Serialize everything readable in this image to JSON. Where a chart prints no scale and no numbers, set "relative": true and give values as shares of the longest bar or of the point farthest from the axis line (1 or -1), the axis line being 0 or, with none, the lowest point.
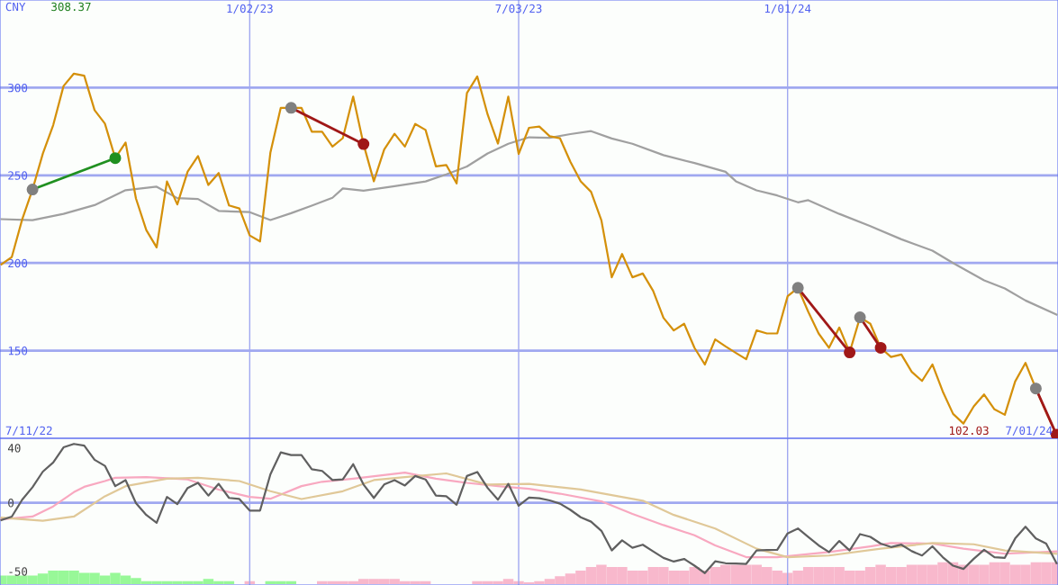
{
  "chart_data": [
    {
      "type": "line",
      "x": [
        "2022-07-18",
        "2022-07-25",
        "2022-08-01",
        "2022-08-08",
        "2022-08-15",
        "2022-08-22",
        "2022-08-29",
        "2022-09-05",
        "2022-09-12",
        "2022-09-19",
        "2022-09-26",
        "2022-10-03",
        "2022-10-10",
        "2022-10-17",
        "2022-10-24",
        "2022-10-31",
        "2022-11-07",
        "2022-11-14",
        "2022-11-21",
        "2022-11-28",
        "2022-12-05",
        "2022-12-12",
        "2022-12-19",
        "2022-12-26",
        "2023-01-02",
        "2023-01-09",
        "2023-01-16",
        "2023-01-23",
        "2023-01-30",
        "2023-02-06",
        "2023-02-13",
        "2023-02-20",
        "2023-02-27",
        "2023-03-06",
        "2023-03-13",
        "2023-03-20",
        "2023-03-27",
        "2023-04-03",
        "2023-04-10",
        "2023-04-17",
        "2023-04-24",
        "2023-05-01",
        "2023-05-08",
        "2023-05-15",
        "2023-05-22",
        "2023-05-29",
        "2023-06-05",
        "2023-06-12",
        "2023-06-19",
        "2023-06-26",
        "2023-07-03",
        "2023-07-10",
        "2023-07-17",
        "2023-07-24",
        "2023-07-31",
        "2023-08-07",
        "2023-08-14",
        "2023-08-21",
        "2023-08-28",
        "2023-09-04",
        "2023-09-11",
        "2023-09-18",
        "2023-09-25",
        "2023-10-02",
        "2023-10-09",
        "2023-10-16",
        "2023-10-23",
        "2023-10-30",
        "2023-11-06",
        "2023-11-13",
        "2023-11-20",
        "2023-11-27",
        "2023-12-04",
        "2023-12-11",
        "2023-12-18",
        "2023-12-25",
        "2024-01-01",
        "2024-01-08",
        "2024-01-15",
        "2024-01-22",
        "2024-01-29",
        "2024-02-05",
        "2024-02-12",
        "2024-02-19",
        "2024-02-26",
        "2024-03-04",
        "2024-03-11",
        "2024-03-18",
        "2024-03-25",
        "2024-04-01",
        "2024-04-08",
        "2024-04-15",
        "2024-04-22",
        "2024-04-29",
        "2024-05-06",
        "2024-05-13",
        "2024-05-20",
        "2024-05-27",
        "2024-06-03",
        "2024-06-10",
        "2024-06-17",
        "2024-06-24",
        "2024-07-01"
      ],
      "series": [
        {
          "color": "#a0a0a0",
          "x": [
            "2022-07-18",
            "2022-08-08",
            "2022-08-29",
            "2022-09-19",
            "2022-10-10",
            "2022-10-31",
            "2022-11-14",
            "2022-11-28",
            "2022-12-12",
            "2023-01-02",
            "2023-01-16",
            "2023-01-30",
            "2023-02-13",
            "2023-02-27",
            "2023-03-06",
            "2023-03-20",
            "2023-04-10",
            "2023-05-01",
            "2023-05-15",
            "2023-05-29",
            "2023-06-12",
            "2023-06-26",
            "2023-07-10",
            "2023-07-24",
            "2023-08-07",
            "2023-08-21",
            "2023-09-04",
            "2023-09-18",
            "2023-10-09",
            "2023-10-30",
            "2023-11-20",
            "2023-11-27",
            "2023-12-11",
            "2023-12-25",
            "2024-01-08",
            "2024-01-15",
            "2024-02-05",
            "2024-02-26",
            "2024-03-18",
            "2024-04-08",
            "2024-04-22",
            "2024-05-13",
            "2024-05-27",
            "2024-06-10",
            "2024-07-01"
          ],
          "values": [
            225.0,
            224.4,
            228,
            233,
            241.5,
            243.5,
            237,
            236.5,
            229.7,
            229,
            224.5,
            228.4,
            232.7,
            237.2,
            242.5,
            241.2,
            243.8,
            246.5,
            250.5,
            255,
            262.5,
            268,
            271.7,
            271.4,
            273.5,
            275.2,
            271,
            268,
            261.5,
            257,
            252,
            246.6,
            241.4,
            238.5,
            234.6,
            235.8,
            228,
            221,
            213.5,
            207,
            200,
            190.1,
            185.5,
            178.6,
            170.5
          ]
        },
        {
          "color": "#d4900a",
          "values": [
            199.2,
            203.4,
            224.8,
            241.9,
            262.4,
            278.6,
            300.9,
            308,
            306.8,
            287.2,
            279.5,
            259.8,
            268.7,
            236.8,
            218.8,
            208.9,
            246.5,
            233.4,
            252.1,
            261.0,
            244.5,
            251.3,
            232.8,
            231.1,
            215.7,
            212.3,
            263,
            288.5,
            288.5,
            288.5,
            274.9,
            274.9,
            266.4,
            271.2,
            294.9,
            267.8,
            246.6,
            264.7,
            273.7,
            266.4,
            279.3,
            275.9,
            255.1,
            255.9,
            245.4,
            296.9,
            306.4,
            284.7,
            268.1,
            294.9,
            262.2,
            277.1,
            277.8,
            272.3,
            271.1,
            257.7,
            246.6,
            240.6,
            224.3,
            191.8,
            205.1,
            191.8,
            194.0,
            184.1,
            168.7,
            161.5,
            165.3,
            151.6,
            142.1,
            156.4,
            152.4,
            148.7,
            145.1,
            161.5,
            159.8,
            159.8,
            181.0,
            185.8,
            172.1,
            159.8,
            151.6,
            163.2,
            149.0,
            169.0,
            165.3,
            151.6,
            146.4,
            147.8,
            137.9,
            132.7,
            142.1,
            126.7,
            113.9,
            108.4,
            118.2,
            125.0,
            116.5,
            113.4,
            132.4,
            143.0,
            128.4,
            114.8,
            102
          ]
        },
        {
          "color": "#209020",
          "marker": "circle",
          "colors": [
            "#808080",
            "#209020"
          ],
          "x": [
            "2022-08-08",
            "2022-10-03"
          ],
          "values": [
            241.9,
            259.8
          ]
        },
        {
          "color": "#a01818",
          "marker": "circle",
          "colors": [
            "#808080",
            "#a01818"
          ],
          "x": [
            "2023-01-30",
            "2023-03-20"
          ],
          "values": [
            288.5,
            267.8
          ]
        },
        {
          "color": "#a01818",
          "marker": "circle",
          "colors": [
            "#808080",
            "#a01818"
          ],
          "x": [
            "2024-01-08",
            "2024-02-12"
          ],
          "values": [
            185.8,
            149.0
          ]
        },
        {
          "color": "#a01818",
          "marker": "circle",
          "colors": [
            "#808080",
            "#a01818"
          ],
          "x": [
            "2024-02-19",
            "2024-03-04"
          ],
          "values": [
            169.0,
            151.6
          ]
        },
        {
          "color": "#a01818",
          "marker": "circle",
          "colors": [
            "#808080",
            "#a01818"
          ],
          "x": [
            "2024-06-17",
            "2024-07-01"
          ],
          "values": [
            128.4,
            102
          ]
        }
      ],
      "xlim": [
        "2022-07-17",
        "2024-07-02"
      ],
      "xticks": [
        {
          "value": "2023-01-02",
          "label": "1/02/23"
        },
        {
          "value": "2023-07-03",
          "label": "7/03/23"
        },
        {
          "value": "2024-01-01",
          "label": "1/01/24"
        }
      ],
      "ylim": [
        100,
        350
      ],
      "yticks": [
        150,
        200,
        250,
        300
      ],
      "grid": true,
      "annotations": [
        "CNY",
        "308.37",
        "7/11/22",
        "102.03",
        "7/01/24"
      ]
    },
    {
      "type": "line",
      "x": [
        "2022-07-18",
        "2022-07-25",
        "2022-08-01",
        "2022-08-08",
        "2022-08-15",
        "2022-08-22",
        "2022-08-29",
        "2022-09-05",
        "2022-09-12",
        "2022-09-19",
        "2022-09-26",
        "2022-10-03",
        "2022-10-10",
        "2022-10-17",
        "2022-10-24",
        "2022-10-31",
        "2022-11-07",
        "2022-11-14",
        "2022-11-21",
        "2022-11-28",
        "2022-12-05",
        "2022-12-12",
        "2022-12-19",
        "2022-12-26",
        "2023-01-02",
        "2023-01-09",
        "2023-01-16",
        "2023-01-23",
        "2023-01-30",
        "2023-02-06",
        "2023-02-13",
        "2023-02-20",
        "2023-02-27",
        "2023-03-06",
        "2023-03-13",
        "2023-03-20",
        "2023-03-27",
        "2023-04-03",
        "2023-04-10",
        "2023-04-17",
        "2023-04-24",
        "2023-05-01",
        "2023-05-08",
        "2023-05-15",
        "2023-05-22",
        "2023-05-29",
        "2023-06-05",
        "2023-06-12",
        "2023-06-19",
        "2023-06-26",
        "2023-07-03",
        "2023-07-10",
        "2023-07-17",
        "2023-07-24",
        "2023-07-31",
        "2023-08-07",
        "2023-08-14",
        "2023-08-21",
        "2023-08-28",
        "2023-09-04",
        "2023-09-11",
        "2023-09-18",
        "2023-09-25",
        "2023-10-02",
        "2023-10-09",
        "2023-10-16",
        "2023-10-23",
        "2023-10-30",
        "2023-11-06",
        "2023-11-13",
        "2023-11-20",
        "2023-11-27",
        "2023-12-04",
        "2023-12-11",
        "2023-12-18",
        "2023-12-25",
        "2024-01-01",
        "2024-01-08",
        "2024-01-15",
        "2024-01-22",
        "2024-01-29",
        "2024-02-05",
        "2024-02-12",
        "2024-02-19",
        "2024-02-26",
        "2024-03-04",
        "2024-03-11",
        "2024-03-18",
        "2024-03-25",
        "2024-04-01",
        "2024-04-08",
        "2024-04-15",
        "2024-04-22",
        "2024-04-29",
        "2024-05-06",
        "2024-05-13",
        "2024-05-20",
        "2024-05-27",
        "2024-06-03",
        "2024-06-10",
        "2024-06-17",
        "2024-06-24",
        "2024-07-01"
      ],
      "series": [
        {
          "color": "#f8a8c0",
          "x": [
            "2022-07-18",
            "2022-08-08",
            "2022-08-22",
            "2022-09-05",
            "2022-09-12",
            "2022-09-26",
            "2022-10-03",
            "2022-10-24",
            "2022-11-21",
            "2022-12-12",
            "2023-01-02",
            "2023-01-16",
            "2023-02-06",
            "2023-02-20",
            "2023-03-13",
            "2023-04-17",
            "2023-05-08",
            "2023-05-29",
            "2023-06-19",
            "2023-07-10",
            "2023-07-31",
            "2023-08-28",
            "2023-09-18",
            "2023-10-09",
            "2023-10-30",
            "2023-11-13",
            "2023-12-04",
            "2023-12-25",
            "2024-01-29",
            "2024-02-26",
            "2024-03-11",
            "2024-04-08",
            "2024-04-29",
            "2024-05-27",
            "2024-07-01"
          ],
          "values": [
            -12.1,
            -10.1,
            -2.7,
            7.7,
            11.6,
            15.8,
            18.2,
            18.7,
            17.0,
            9.6,
            4.2,
            2.9,
            12.1,
            15.3,
            17.5,
            22.0,
            17.5,
            14.5,
            12.1,
            10.1,
            6.6,
            1.0,
            -8.1,
            -16.3,
            -23.7,
            -31.1,
            -39.7,
            -39.7,
            -36.0,
            -31.8,
            -29.4,
            -29.8,
            -33.5,
            -37.2,
            -35.5
          ]
        },
        {
          "color": "#e0c898",
          "x": [
            "2022-07-18",
            "2022-08-15",
            "2022-09-05",
            "2022-09-26",
            "2022-10-10",
            "2022-11-07",
            "2022-11-28",
            "2022-12-26",
            "2023-01-16",
            "2023-02-06",
            "2023-03-06",
            "2023-03-27",
            "2023-04-17",
            "2023-05-15",
            "2023-06-12",
            "2023-07-10",
            "2023-08-14",
            "2023-09-25",
            "2023-10-16",
            "2023-11-13",
            "2023-12-11",
            "2024-01-01",
            "2024-01-29",
            "2024-03-04",
            "2024-04-08",
            "2024-05-06",
            "2024-05-27",
            "2024-07-01"
          ],
          "values": [
            -10.9,
            -13.1,
            -10.1,
            4.7,
            12.1,
            17.5,
            18.2,
            15.8,
            8.4,
            2.7,
            8.4,
            16.5,
            18.7,
            21.4,
            13.3,
            13.8,
            9.6,
            1.5,
            -8.9,
            -18.8,
            -33.5,
            -39.7,
            -38.5,
            -33.5,
            -29.4,
            -30.3,
            -34.8,
            -37.2
          ]
        },
        {
          "color": "#606060",
          "values": [
            -12.6,
            -10.1,
            2.2,
            11.3,
            22.7,
            29.3,
            40.4,
            42.9,
            41.7,
            31.3,
            26.9,
            12.1,
            16.5,
            -0.3,
            -8.9,
            -14.6,
            4.2,
            -1.0,
            10.8,
            14.5,
            5.2,
            13.8,
            3.5,
            2.7,
            -5.7,
            -5.7,
            20.7,
            36.7,
            34.8,
            34.8,
            24.4,
            23.2,
            16.5,
            17.0,
            28.1,
            13.3,
            3.5,
            13.3,
            16.5,
            12.6,
            19.5,
            17.0,
            5.2,
            4.7,
            -1.5,
            19.5,
            22.4,
            10.8,
            2.2,
            13.8,
            -2.2,
            3.7,
            3.2,
            1.7,
            -0.7,
            -5.2,
            -10.6,
            -13.8,
            -20.5,
            -34.8,
            -27.4,
            -32.8,
            -30.6,
            -35.5,
            -40.2,
            -42.9,
            -41.0,
            -45.9,
            -51.3,
            -42.7,
            -44.1,
            -44.4,
            -44.6,
            -34.8,
            -34.5,
            -34.3,
            -22.4,
            -18.8,
            -24.9,
            -31.1,
            -36.0,
            -27.9,
            -34.8,
            -22.9,
            -24.9,
            -29.8,
            -32.3,
            -30.6,
            -35.3,
            -38.5,
            -31.8,
            -39.7,
            -45.9,
            -48.3,
            -40.9,
            -34.3,
            -39.7,
            -40.2,
            -26.1,
            -17.5,
            -26.1,
            -29.8,
            -44.1
          ]
        }
      ],
      "xlim": [
        "2022-07-17",
        "2024-07-02"
      ],
      "xticks": [
        {
          "value": "2023-01-02",
          "label": null
        },
        {
          "value": "2023-07-03",
          "label": null
        },
        {
          "value": "2024-01-01",
          "label": null
        }
      ],
      "ylim": [
        -60,
        47
      ],
      "yticks": [
        -50,
        0,
        40
      ],
      "grid": "x",
      "tick_labels": "y",
      "ref_lines": [
        {
          "axis": "y",
          "value": 0,
          "color": "#a0a8f0"
        }
      ]
    },
    {
      "type": "bar",
      "relative": true,
      "x": [
        "2022-07-18",
        "2022-07-25",
        "2022-08-01",
        "2022-08-08",
        "2022-08-15",
        "2022-08-22",
        "2022-08-29",
        "2022-09-05",
        "2022-09-12",
        "2022-09-19",
        "2022-09-26",
        "2022-10-03",
        "2022-10-10",
        "2022-10-17",
        "2022-10-24",
        "2022-10-31",
        "2022-11-07",
        "2022-11-14",
        "2022-11-21",
        "2022-11-28",
        "2022-12-05",
        "2022-12-12",
        "2022-12-19",
        "2022-12-26",
        "2023-01-02",
        "2023-01-09",
        "2023-01-16",
        "2023-01-23",
        "2023-01-30",
        "2023-02-06",
        "2023-02-13",
        "2023-02-20",
        "2023-02-27",
        "2023-03-06",
        "2023-03-13",
        "2023-03-20",
        "2023-03-27",
        "2023-04-03",
        "2023-04-10",
        "2023-04-17",
        "2023-04-24",
        "2023-05-01",
        "2023-05-08",
        "2023-05-15",
        "2023-05-22",
        "2023-05-29",
        "2023-06-05",
        "2023-06-12",
        "2023-06-19",
        "2023-06-26",
        "2023-07-03",
        "2023-07-10",
        "2023-07-17",
        "2023-07-24",
        "2023-07-31",
        "2023-08-07",
        "2023-08-14",
        "2023-08-21",
        "2023-08-28",
        "2023-09-04",
        "2023-09-11",
        "2023-09-18",
        "2023-09-25",
        "2023-10-02",
        "2023-10-09",
        "2023-10-16",
        "2023-10-23",
        "2023-10-30",
        "2023-11-06",
        "2023-11-13",
        "2023-11-20",
        "2023-11-27",
        "2023-12-04",
        "2023-12-11",
        "2023-12-18",
        "2023-12-25",
        "2024-01-01",
        "2024-01-08",
        "2024-01-15",
        "2024-01-22",
        "2024-01-29",
        "2024-02-05",
        "2024-02-12",
        "2024-02-19",
        "2024-02-26",
        "2024-03-04",
        "2024-03-11",
        "2024-03-18",
        "2024-03-25",
        "2024-04-01",
        "2024-04-08",
        "2024-04-15",
        "2024-04-22",
        "2024-04-29",
        "2024-05-06",
        "2024-05-13",
        "2024-05-20",
        "2024-05-27",
        "2024-06-03",
        "2024-06-10",
        "2024-06-17",
        "2024-06-24",
        "2024-07-01"
      ],
      "values": [
        0.39,
        0.39,
        0.39,
        0.39,
        0.48,
        0.61,
        0.61,
        0.61,
        0.51,
        0.51,
        0.39,
        0.51,
        0.39,
        0.28,
        0.13,
        0.13,
        0.13,
        0.13,
        0.13,
        0.13,
        0.24,
        0.13,
        0.13,
        null,
        0.13,
        null,
        0.13,
        0.13,
        0.13,
        null,
        null,
        0.13,
        0.13,
        0.13,
        0.13,
        0.24,
        0.24,
        0.24,
        0.24,
        0.13,
        0.13,
        0.13,
        null,
        null,
        null,
        null,
        0.13,
        0.13,
        0.13,
        0.24,
        0.13,
        0.08,
        0.13,
        0.24,
        0.36,
        0.48,
        0.61,
        0.77,
        0.88,
        0.77,
        0.77,
        0.61,
        0.61,
        0.77,
        0.77,
        0.61,
        0.61,
        0.77,
        0.61,
        0.77,
        0.88,
        0.88,
        0.88,
        0.88,
        0.77,
        0.61,
        0.51,
        0.61,
        0.77,
        0.77,
        0.77,
        0.77,
        0.61,
        0.61,
        0.77,
        0.88,
        0.77,
        0.77,
        0.88,
        0.88,
        0.88,
        1,
        1,
        0.88,
        0.88,
        0.88,
        1,
        1,
        0.88,
        0.88,
        1,
        1,
        1
      ],
      "colors": [
        "#98f898",
        "#98f898",
        "#98f898",
        "#98f898",
        "#98f898",
        "#98f898",
        "#98f898",
        "#98f898",
        "#98f898",
        "#98f898",
        "#98f898",
        "#98f898",
        "#98f898",
        "#98f898",
        "#98f898",
        "#98f898",
        "#98f898",
        "#98f898",
        "#98f898",
        "#98f898",
        "#98f898",
        "#98f898",
        "#98f898",
        "#f8b8cc",
        "#f8b8cc",
        "#f8b8cc",
        "#98f898",
        "#98f898",
        "#98f898",
        "#f8b8cc",
        "#f8b8cc",
        "#f8b8cc",
        "#f8b8cc",
        "#f8b8cc",
        "#f8b8cc",
        "#f8b8cc",
        "#f8b8cc",
        "#f8b8cc",
        "#f8b8cc",
        "#f8b8cc",
        "#f8b8cc",
        "#f8b8cc",
        "#f8b8cc",
        "#f8b8cc",
        "#f8b8cc",
        "#f8b8cc",
        "#f8b8cc",
        "#f8b8cc",
        "#f8b8cc",
        "#f8b8cc",
        "#f8b8cc",
        "#f8b8cc",
        "#f8b8cc",
        "#f8b8cc",
        "#f8b8cc",
        "#f8b8cc",
        "#f8b8cc",
        "#f8b8cc",
        "#f8b8cc",
        "#f8b8cc",
        "#f8b8cc",
        "#f8b8cc",
        "#f8b8cc",
        "#f8b8cc",
        "#f8b8cc",
        "#f8b8cc",
        "#f8b8cc",
        "#f8b8cc",
        "#f8b8cc",
        "#f8b8cc",
        "#f8b8cc",
        "#f8b8cc",
        "#f8b8cc",
        "#f8b8cc",
        "#f8b8cc",
        "#f8b8cc",
        "#f8b8cc",
        "#f8b8cc",
        "#f8b8cc",
        "#f8b8cc",
        "#f8b8cc",
        "#f8b8cc",
        "#f8b8cc",
        "#f8b8cc",
        "#f8b8cc",
        "#f8b8cc",
        "#f8b8cc",
        "#f8b8cc",
        "#f8b8cc",
        "#f8b8cc",
        "#f8b8cc",
        "#f8b8cc",
        "#f8b8cc",
        "#f8b8cc",
        "#f8b8cc",
        "#f8b8cc",
        "#f8b8cc",
        "#f8b8cc",
        "#f8b8cc",
        "#f8b8cc",
        "#f8b8cc",
        "#f8b8cc",
        "#f8b8cc"
      ],
      "xlim": [
        "2022-07-17",
        "2024-07-02"
      ]
    }
  ]
}
